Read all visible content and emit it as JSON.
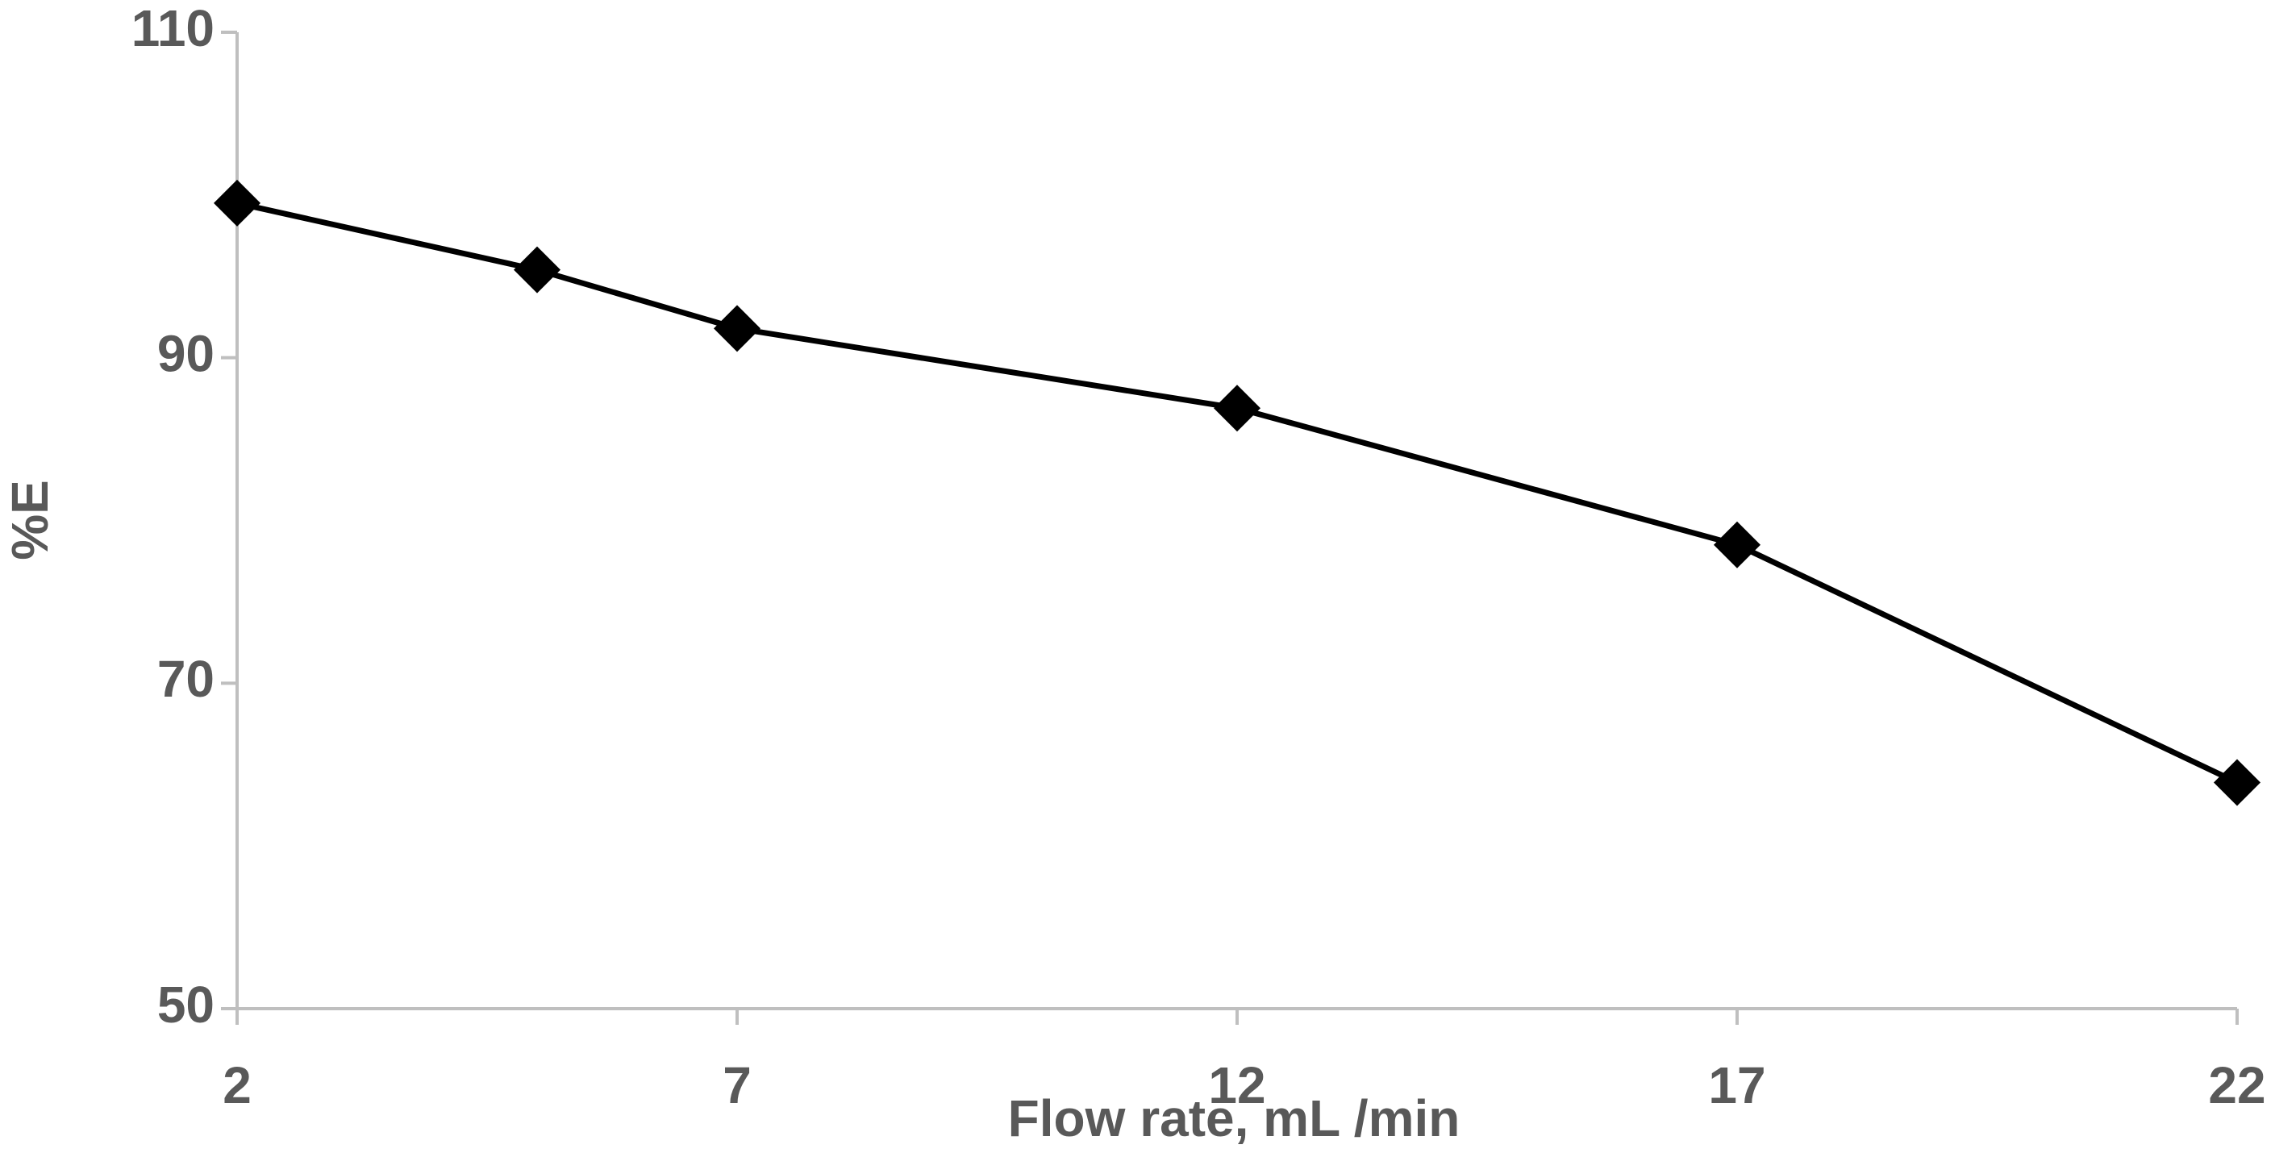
{
  "chart_data": {
    "type": "line",
    "x_label": "Flow rate, mL /min",
    "y_label": "%E",
    "x": [
      2,
      5,
      7,
      12,
      17,
      22
    ],
    "series": [
      {
        "name": "%E",
        "color": "#000000",
        "values": [
          99.5,
          95.4,
          91.8,
          86.9,
          78.5,
          63.9
        ]
      }
    ],
    "xlim": [
      2,
      22
    ],
    "xticks": [
      2,
      7,
      12,
      17,
      22
    ],
    "ylim": [
      50,
      110
    ],
    "yticks": [
      50,
      70,
      90,
      110
    ],
    "grid": false
  }
}
